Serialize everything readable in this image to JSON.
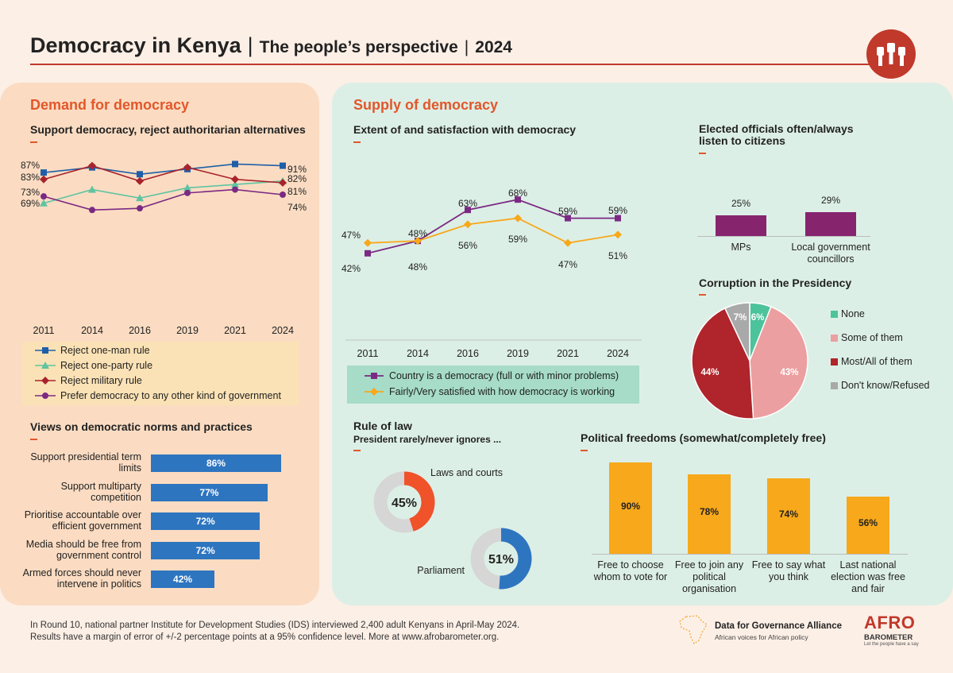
{
  "header": {
    "title": "Democracy in Kenya",
    "subtitle": "The people’s perspective",
    "year": "2024"
  },
  "demand": {
    "section_title": "Demand for democracy",
    "support_title": "Support democracy, reject authoritarian alternatives",
    "norms_title": "Views on democratic norms and practices"
  },
  "supply": {
    "section_title": "Supply of democracy",
    "extent_title": "Extent of and satisfaction with democracy",
    "officials_title": "Elected officials often/always listen to citizens",
    "corruption_title": "Corruption in the Presidency",
    "rule_title": "Rule of law",
    "rule_subtitle": "President rarely/never ignores ...",
    "freedoms_title": "Political freedoms (somewhat/completely free)"
  },
  "colors": {
    "orange": "#e2572b",
    "blue": "#1f5fa8",
    "teal": "#5fc4a1",
    "darkred": "#a8232b",
    "purple": "#7b2a83",
    "yellow": "#f7a81b",
    "barblue": "#2e75c0"
  },
  "chart_data": [
    {
      "id": "support",
      "type": "line",
      "x": [
        "2011",
        "2014",
        "2016",
        "2019",
        "2021",
        "2024"
      ],
      "ylim": [
        60,
        95
      ],
      "series": [
        {
          "name": "Reject one-man rule",
          "values": [
            87,
            90,
            86,
            89,
            92,
            91
          ],
          "color": "#1f5fa8",
          "marker": "square"
        },
        {
          "name": "Reject one-party rule",
          "values": [
            69,
            77,
            72,
            78,
            80,
            82
          ],
          "color": "#5fc4a1",
          "marker": "triangle"
        },
        {
          "name": "Reject military rule",
          "values": [
            83,
            91,
            82,
            90,
            83,
            81
          ],
          "color": "#a8232b",
          "marker": "diamond"
        },
        {
          "name": "Prefer democracy to any other kind of government",
          "values": [
            73,
            65,
            66,
            75,
            77,
            74
          ],
          "color": "#7b2a83",
          "marker": "circle"
        }
      ],
      "labels": {
        "start": [
          "87%",
          "83%",
          "73%",
          "69%"
        ],
        "end": [
          "91%",
          "82%",
          "81%",
          "74%"
        ]
      }
    },
    {
      "id": "norms",
      "type": "bar",
      "orientation": "horizontal",
      "categories": [
        "Support presidential term limits",
        "Support multiparty competition",
        "Prioritise accountable over efficient government",
        "Media should be free from government control",
        "Armed forces should never intervene in politics"
      ],
      "values": [
        86,
        77,
        72,
        72,
        42
      ],
      "labels": [
        "86%",
        "77%",
        "72%",
        "72%",
        "42%"
      ]
    },
    {
      "id": "extent",
      "type": "line",
      "x": [
        "2011",
        "2014",
        "2016",
        "2019",
        "2021",
        "2024"
      ],
      "ylim": [
        30,
        80
      ],
      "series": [
        {
          "name": "Country is a democracy (full or with minor problems)",
          "values": [
            42,
            48,
            63,
            68,
            59,
            59
          ],
          "labels": [
            "42%",
            "48%",
            "63%",
            "68%",
            "59%",
            "59%"
          ],
          "color": "#7b2a83",
          "marker": "square"
        },
        {
          "name": "Fairly/Very satisfied with how democracy is working",
          "values": [
            47,
            48,
            56,
            59,
            47,
            51
          ],
          "labels": [
            "47%",
            "48%",
            "56%",
            "59%",
            "47%",
            "51%"
          ],
          "color": "#f7a81b",
          "marker": "diamond"
        }
      ]
    },
    {
      "id": "officials",
      "type": "bar",
      "categories": [
        "MPs",
        "Local government councillors"
      ],
      "values": [
        25,
        29
      ],
      "labels": [
        "25%",
        "29%"
      ]
    },
    {
      "id": "corruption",
      "type": "pie",
      "categories": [
        "None",
        "Some of them",
        "Most/All of them",
        "Don't know/Refused"
      ],
      "values": [
        6,
        43,
        44,
        7
      ],
      "labels": [
        "6%",
        "43%",
        "44%",
        "7%"
      ],
      "colors": [
        "#4cc39a",
        "#ec9fa0",
        "#b0242b",
        "#a9a9a9"
      ]
    },
    {
      "id": "rule_of_law",
      "type": "pie",
      "categories": [
        "Laws and courts",
        "Parliament"
      ],
      "values": [
        45,
        51
      ],
      "labels": [
        "45%",
        "51%"
      ],
      "colors": [
        "#f0522a",
        "#2e75c0"
      ]
    },
    {
      "id": "freedoms",
      "type": "bar",
      "categories": [
        "Free to choose whom to vote for",
        "Free to join any political organisation",
        "Free to say what you think",
        "Last national election was free and fair"
      ],
      "values": [
        90,
        78,
        74,
        56
      ],
      "labels": [
        "90%",
        "78%",
        "74%",
        "56%"
      ]
    }
  ],
  "footer": {
    "line1": "In Round 10, national partner Institute for Development Studies (IDS) interviewed 2,400 adult Kenyans in April-May 2024.",
    "line2": "Results have a margin of error of +/-2 percentage points at a 95% confidence level. More at www.afrobarometer.org.",
    "dga_name": "Data for Governance Alliance",
    "dga_tagline": "African voices for African policy",
    "ab_logo_top": "AFRO",
    "ab_logo_bottom": "BAROMETER",
    "ab_tagline": "Let the people have a say"
  }
}
